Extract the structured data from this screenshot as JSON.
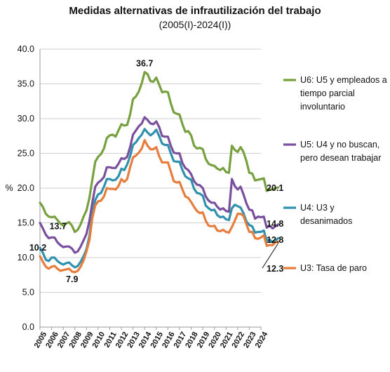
{
  "chart_data": {
    "type": "line",
    "title": "Medidas alternativas de infrautilización del trabajo",
    "subtitle": "(2005(I)-2024(I))",
    "ylabel": "%",
    "ylim": [
      0,
      40
    ],
    "yticks": [
      "0.0",
      "5.0",
      "10.0",
      "15.0",
      "20.0",
      "25.0",
      "30.0",
      "35.0",
      "40.0"
    ],
    "xticks": [
      "2005",
      "2006",
      "2007",
      "2008",
      "2009",
      "2010",
      "2011",
      "2012",
      "2013",
      "2014",
      "2015",
      "2016",
      "2017",
      "2018",
      "2019",
      "2020",
      "2021",
      "2022",
      "2023",
      "2024"
    ],
    "x_start": 2005.0,
    "x_step": 0.25,
    "grid": "horizontal",
    "series": [
      {
        "name": "U6: U5 y empleados a tiempo parcial involuntario",
        "legend_lines": [
          "U6: U5 y empleados a",
          "tiempo parcial",
          "involuntario"
        ],
        "color": "#77a03f",
        "end_label": "20.1",
        "values": [
          17.9,
          17.3,
          16.3,
          15.9,
          15.8,
          15.9,
          15.4,
          14.9,
          14.6,
          14.9,
          15.1,
          14.6,
          13.7,
          14.0,
          14.8,
          15.9,
          16.8,
          18.6,
          21.2,
          23.8,
          24.5,
          24.9,
          25.7,
          27.2,
          27.6,
          27.7,
          27.4,
          28.3,
          29.2,
          29.0,
          29.1,
          30.6,
          32.8,
          33.2,
          33.9,
          35.1,
          36.7,
          36.4,
          35.4,
          35.3,
          35.9,
          34.9,
          33.8,
          33.9,
          33.8,
          32.2,
          30.9,
          30.7,
          30.6,
          29.2,
          28.1,
          28.2,
          27.6,
          26.1,
          25.7,
          25.8,
          25.6,
          24.2,
          23.5,
          23.3,
          23.2,
          22.8,
          22.6,
          22.9,
          22.3,
          22.2,
          26.1,
          25.5,
          25.2,
          25.9,
          25.2,
          23.9,
          22.2,
          22.1,
          21.1,
          21.2,
          21.3,
          21.4,
          19.6,
          19.8,
          19.8,
          20.0,
          20.1
        ]
      },
      {
        "name": "U5: U4 y no buscan, pero desean trabajar",
        "legend_lines": [
          "U5: U4 y no buscan,",
          "pero desean trabajar"
        ],
        "color": "#7a4f9e",
        "end_label": "14.8",
        "values": [
          15.0,
          14.2,
          13.3,
          12.8,
          12.9,
          12.9,
          12.2,
          11.8,
          11.5,
          11.6,
          11.6,
          11.3,
          10.7,
          10.9,
          11.6,
          12.5,
          13.4,
          15.3,
          17.9,
          20.2,
          20.8,
          21.1,
          21.6,
          23.0,
          23.0,
          22.9,
          22.9,
          23.5,
          24.3,
          24.2,
          24.5,
          25.9,
          27.7,
          28.3,
          28.9,
          29.3,
          30.2,
          29.8,
          29.3,
          29.2,
          29.6,
          28.8,
          27.5,
          27.4,
          27.4,
          26.1,
          25.1,
          25.0,
          25.0,
          23.6,
          22.9,
          22.6,
          22.0,
          21.0,
          20.5,
          20.4,
          20.0,
          18.8,
          18.2,
          17.9,
          17.9,
          17.3,
          16.9,
          17.1,
          16.7,
          16.6,
          21.3,
          20.3,
          19.8,
          20.2,
          19.1,
          17.8,
          16.9,
          16.8,
          15.6,
          15.9,
          15.8,
          15.9,
          14.3,
          14.6,
          14.2,
          14.5,
          14.8
        ]
      },
      {
        "name": "U4: U3 y desanimados",
        "legend_lines": [
          "U4:  U3 y",
          "desanimados"
        ],
        "color": "#2f91ad",
        "end_label": "12.8",
        "values": [
          11.4,
          10.7,
          9.7,
          9.5,
          10.0,
          10.0,
          9.5,
          9.2,
          9.0,
          9.2,
          9.3,
          8.9,
          8.6,
          8.8,
          9.4,
          10.2,
          11.2,
          13.1,
          16.3,
          18.3,
          19.1,
          19.3,
          20.2,
          21.3,
          21.3,
          21.1,
          21.2,
          21.7,
          22.8,
          22.6,
          23.4,
          24.6,
          26.2,
          26.6,
          27.2,
          27.7,
          28.5,
          28.0,
          27.6,
          27.9,
          28.4,
          27.5,
          26.4,
          26.2,
          26.2,
          25.0,
          23.9,
          23.8,
          23.8,
          22.6,
          21.7,
          21.4,
          21.2,
          19.9,
          19.3,
          19.2,
          18.9,
          17.5,
          17.1,
          16.8,
          16.9,
          16.1,
          15.8,
          15.9,
          15.5,
          15.4,
          17.1,
          17.6,
          17.4,
          17.2,
          16.4,
          15.2,
          14.7,
          14.5,
          13.6,
          13.7,
          13.7,
          13.9,
          12.4,
          12.6,
          12.2,
          12.5,
          12.8
        ]
      },
      {
        "name": "U3: Tasa de paro",
        "legend_lines": [
          "U3: Tasa de paro"
        ],
        "color": "#e67d3c",
        "end_label": "12.3",
        "values": [
          10.2,
          9.4,
          8.7,
          8.4,
          8.7,
          8.8,
          8.4,
          8.1,
          8.2,
          8.3,
          8.4,
          8.0,
          7.9,
          8.1,
          8.7,
          9.6,
          10.9,
          12.5,
          15.7,
          17.5,
          18.1,
          18.2,
          18.8,
          20.0,
          19.9,
          19.9,
          19.8,
          20.3,
          21.3,
          20.9,
          21.3,
          23.0,
          24.4,
          24.7,
          25.1,
          25.7,
          26.9,
          26.1,
          25.6,
          25.6,
          25.9,
          24.6,
          23.7,
          23.7,
          23.7,
          22.4,
          21.0,
          20.8,
          20.9,
          19.8,
          18.8,
          18.6,
          18.0,
          17.3,
          16.7,
          16.4,
          16.5,
          15.3,
          14.6,
          14.5,
          14.6,
          13.9,
          13.8,
          14.0,
          13.7,
          13.6,
          14.4,
          15.3,
          16.3,
          16.3,
          16.0,
          14.8,
          13.7,
          13.7,
          12.8,
          12.7,
          12.9,
          13.2,
          11.7,
          11.8,
          11.8,
          12.2,
          12.3
        ]
      }
    ],
    "annotations": [
      {
        "text": "36.7",
        "series": 0,
        "index": 36
      },
      {
        "text": "13.7",
        "series": 0,
        "index": 12
      },
      {
        "text": "10.2",
        "series": 3,
        "index": 0
      },
      {
        "text": "7.9",
        "series": 3,
        "index": 12
      }
    ]
  }
}
